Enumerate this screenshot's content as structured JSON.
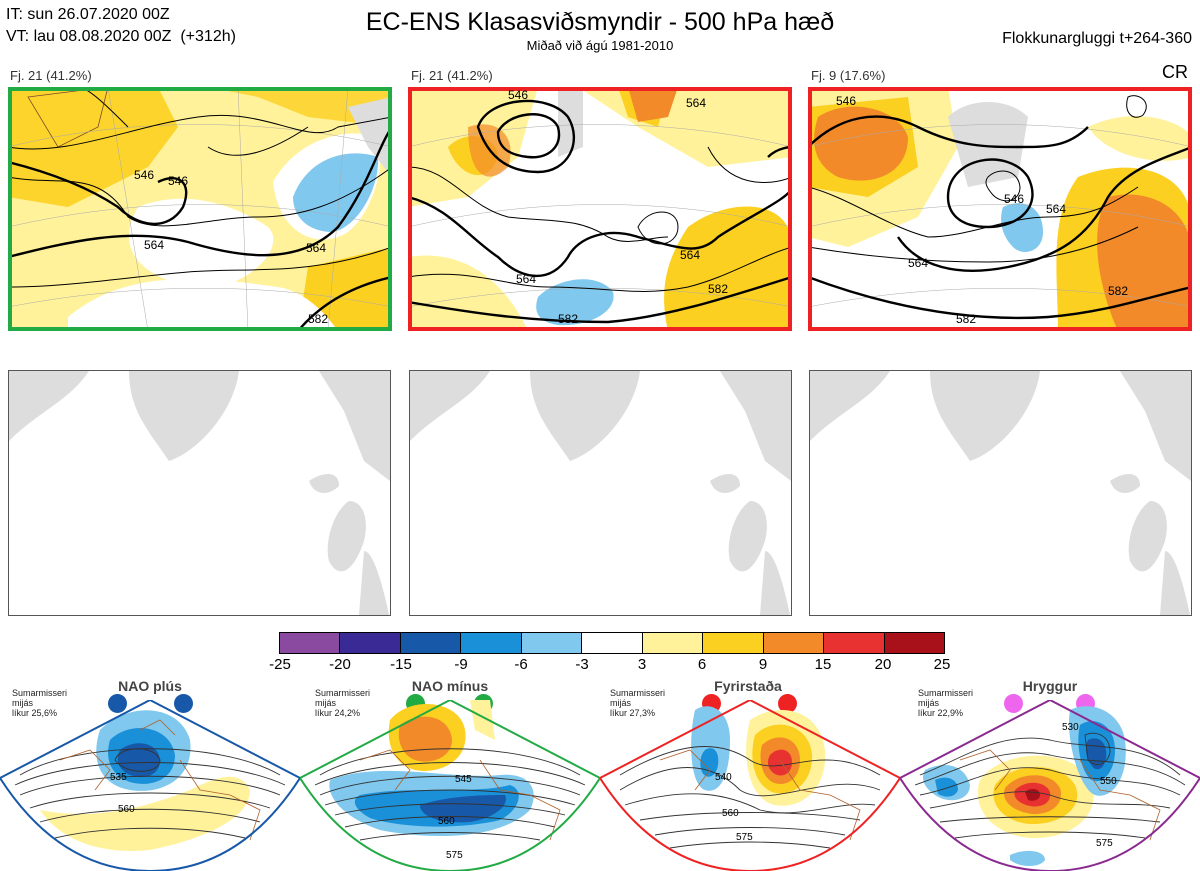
{
  "header": {
    "it_line": "IT: sun 26.07.2020 00Z",
    "vt_line": "VT: lau 08.08.2020 00Z  (+312h)",
    "title": "EC-ENS Klasasviðsmyndir - 500 hPa hæð",
    "subtitle": "Miðað við ágú 1981-2010",
    "window": "Flokkunargluggi t+264-360"
  },
  "clusters": [
    {
      "label": "Fj. 21 (41.2%)",
      "border_color": "#22aa44",
      "contours": [
        "546",
        "546",
        "564",
        "564",
        "582"
      ]
    },
    {
      "label": "Fj. 21 (41.2%)",
      "border_color": "#ee2222",
      "contours": [
        "546",
        "564",
        "564",
        "582",
        "582",
        "564"
      ]
    },
    {
      "label": "Fj. 9 (17.6%)",
      "border_color": "#ee2222",
      "contours": [
        "546",
        "564",
        "546",
        "564",
        "582",
        "582"
      ]
    }
  ],
  "cr_label": "CR",
  "colorbar": {
    "ticks": [
      "-25",
      "-20",
      "-15",
      "-9",
      "-6",
      "-3",
      "3",
      "6",
      "9",
      "15",
      "20",
      "25"
    ],
    "colors": [
      "#8a4aa0",
      "#3a2a95",
      "#1858a8",
      "#1a90d8",
      "#80c8ee",
      "#ffffff",
      "#fff29a",
      "#fcd020",
      "#f28a2a",
      "#e83232",
      "#a8101a"
    ]
  },
  "regimes": [
    {
      "name": "NAO plús",
      "info": "Sumarmisseri\nmijás\nlíkur 25,6%",
      "color": "#1858a8",
      "dot_color": "#1858a8",
      "labels": [
        "535",
        "560"
      ]
    },
    {
      "name": "NAO mínus",
      "info": "Sumarmisseri\nmijás\nlíkur 24,2%",
      "color": "#22aa44",
      "dot_color": "#22aa44",
      "labels": [
        "545",
        "560",
        "575"
      ]
    },
    {
      "name": "Fyrirstaða",
      "info": "Sumarmisseri\nmijás\nlíkur 27,3%",
      "color": "#ee2222",
      "dot_color": "#ee2222",
      "labels": [
        "540",
        "560",
        "575"
      ]
    },
    {
      "name": "Hryggur",
      "info": "Sumarmisseri\nmijás\nlíkur 22,9%",
      "color": "#8a2a90",
      "dot_color": "#ee66ee",
      "labels": [
        "530",
        "550",
        "575"
      ]
    }
  ]
}
